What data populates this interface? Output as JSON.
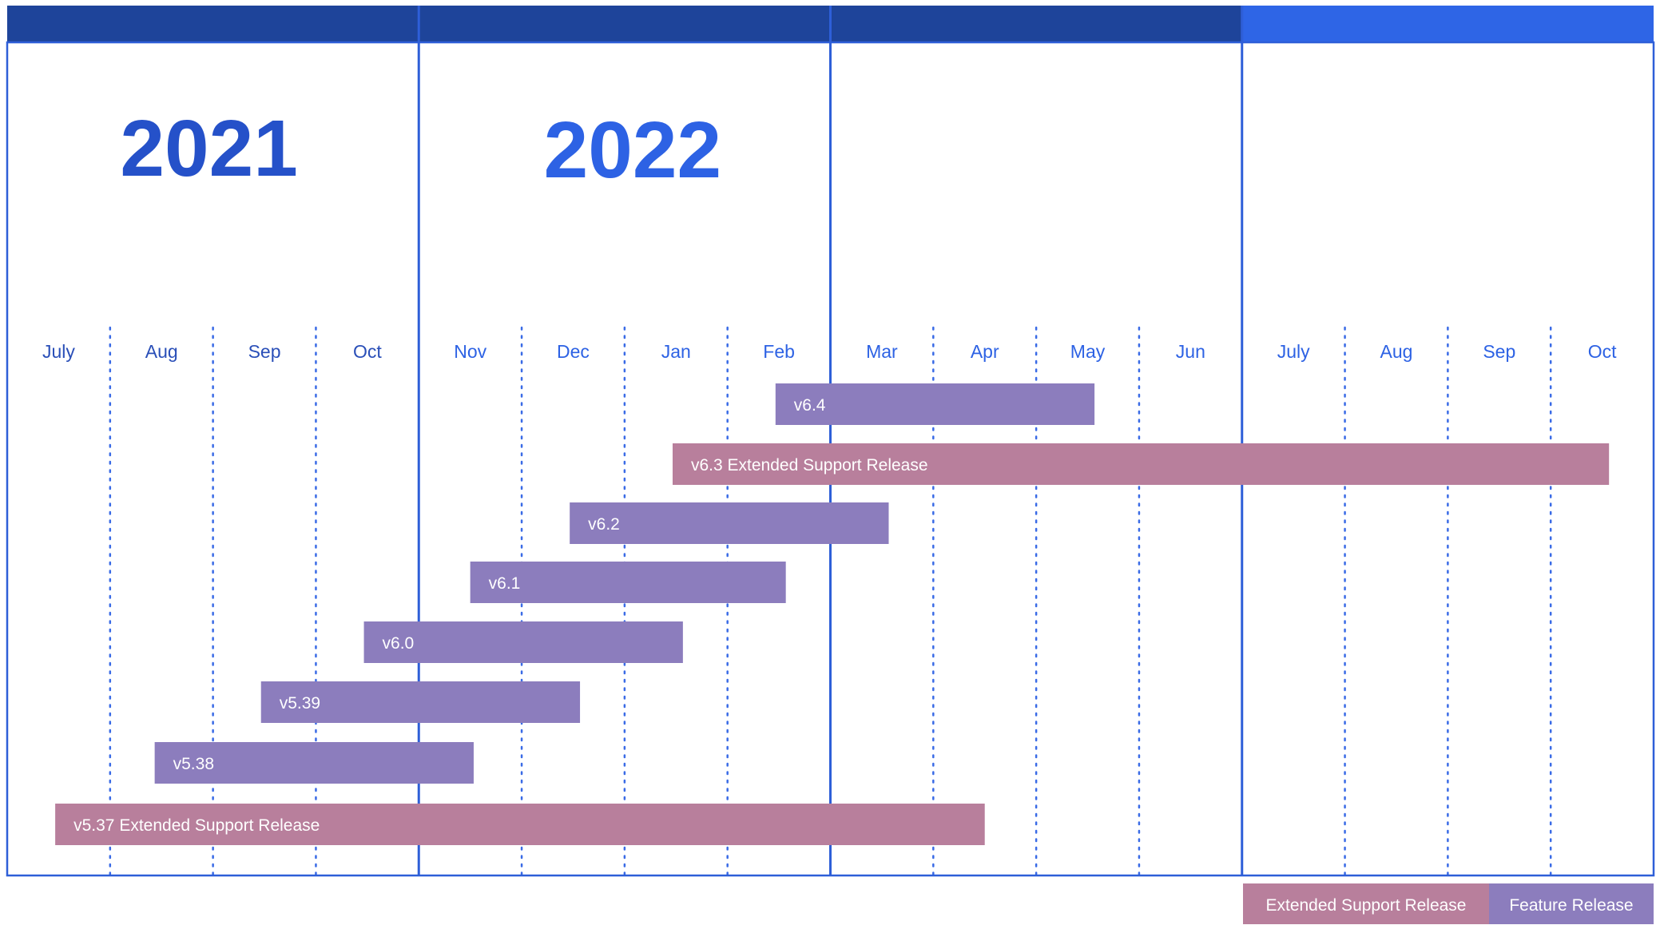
{
  "chart_data": {
    "type": "gantt",
    "title": "",
    "years": [
      "2021",
      "2022"
    ],
    "months": [
      "July",
      "Aug",
      "Sep",
      "Oct",
      "Nov",
      "Dec",
      "Jan",
      "Feb",
      "Mar",
      "Apr",
      "May",
      "Jun",
      "July",
      "Aug",
      "Sep",
      "Oct"
    ],
    "x_range": [
      "2021-07-01",
      "2022-11-01"
    ],
    "grid": "dotted monthly lines",
    "bars": [
      {
        "label": "v6.4",
        "type": "feature",
        "start": "2022-02-15",
        "end": "2022-05-18"
      },
      {
        "label": "v6.3 Extended Support Release",
        "type": "esr",
        "start": "2022-01-15",
        "end": "2022-10-18"
      },
      {
        "label": "v6.2",
        "type": "feature",
        "start": "2021-12-15",
        "end": "2022-03-18"
      },
      {
        "label": "v6.1",
        "type": "feature",
        "start": "2021-11-16",
        "end": "2022-02-18"
      },
      {
        "label": "v6.0",
        "type": "feature",
        "start": "2021-10-15",
        "end": "2022-01-18"
      },
      {
        "label": "v5.39",
        "type": "feature",
        "start": "2021-09-15",
        "end": "2021-12-18"
      },
      {
        "label": "v5.38",
        "type": "feature",
        "start": "2021-08-14",
        "end": "2021-11-17"
      },
      {
        "label": "v5.37 Extended Support Release",
        "type": "esr",
        "start": "2021-07-15",
        "end": "2022-04-16"
      }
    ],
    "legend": {
      "placement": "bottom-right",
      "items": [
        {
          "label": "Extended Support Release",
          "type": "esr"
        },
        {
          "label": "Feature Release",
          "type": "feature"
        }
      ]
    },
    "colors": {
      "feature": "#8c7dbd",
      "esr": "#b87f9c",
      "header_dark": "#1e449a",
      "header_bright": "#2e65e6",
      "year_2021": "#2551c9",
      "year_2022": "#2d62e4",
      "grid": "#3a6be6",
      "frame": "#2e5fd8",
      "month_dark": "#2a4fb8",
      "month_bright": "#2d62e4"
    }
  }
}
